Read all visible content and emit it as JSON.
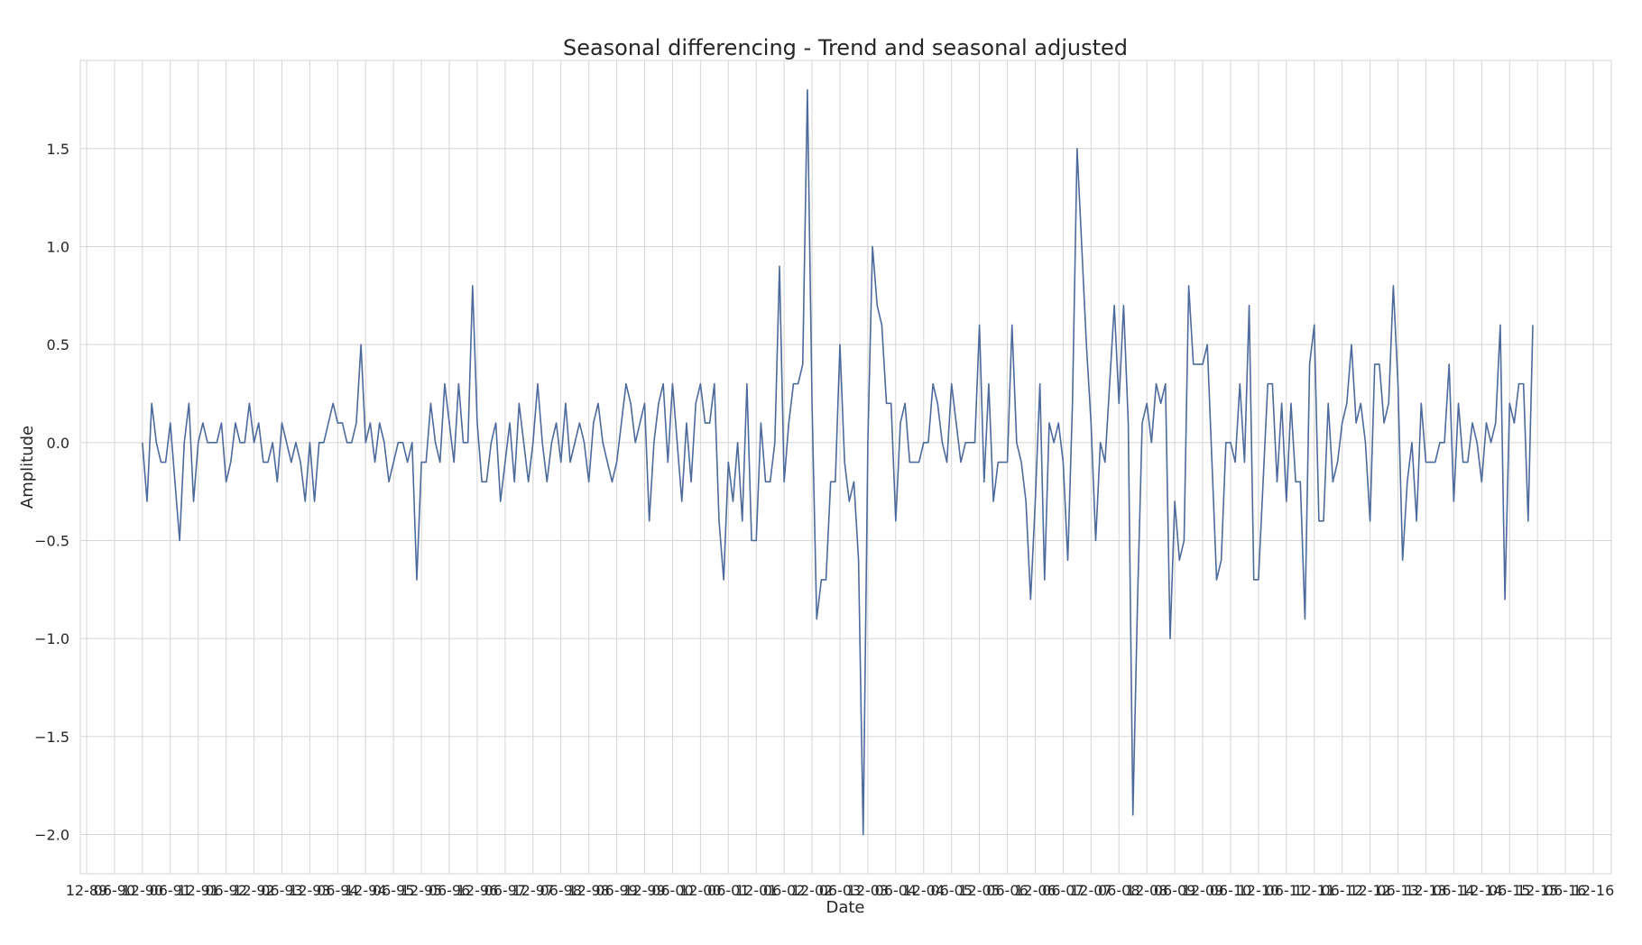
{
  "chart_data": {
    "type": "line",
    "title": "Seasonal differencing - Trend and seasonal adjusted",
    "xlabel": "Date",
    "ylabel": "Amplitude",
    "grid": true,
    "legend": "none",
    "line_color": "#4c6a9c",
    "ylim": [
      -2.2,
      1.95
    ],
    "x_axis_unit": "month index from 1989-12",
    "x_tick_labels": [
      "12-89",
      "06-90",
      "12-90",
      "06-91",
      "12-91",
      "06-92",
      "12-92",
      "06-93",
      "12-93",
      "06-94",
      "12-94",
      "06-95",
      "12-95",
      "06-96",
      "12-96",
      "06-97",
      "12-97",
      "06-98",
      "12-98",
      "06-99",
      "12-99",
      "06-00",
      "12-00",
      "06-01",
      "12-01",
      "06-02",
      "12-02",
      "06-03",
      "12-03",
      "06-04",
      "12-04",
      "06-05",
      "12-05",
      "06-06",
      "12-06",
      "06-07",
      "12-07",
      "06-08",
      "12-08",
      "06-09",
      "12-09",
      "06-10",
      "12-10",
      "06-11",
      "12-11",
      "06-12",
      "12-12",
      "06-13",
      "12-13",
      "06-14",
      "12-14",
      "06-15",
      "12-15",
      "06-16",
      "12-16"
    ],
    "y_ticks": [
      -2.0,
      -1.5,
      -1.0,
      -0.5,
      0.0,
      0.5,
      1.0,
      1.5
    ],
    "y_tick_labels": [
      "−2.0",
      "−1.5",
      "−1.0",
      "−0.5",
      "0.0",
      "0.5",
      "1.0",
      "1.5"
    ],
    "series": [
      {
        "start_month_index": 12,
        "values": [
          0.0,
          -0.3,
          0.2,
          0.0,
          -0.1,
          -0.1,
          0.1,
          -0.2,
          -0.5,
          0.0,
          0.2,
          -0.3,
          0.0,
          0.1,
          0.0,
          0.0,
          0.0,
          0.1,
          -0.2,
          -0.1,
          0.1,
          0.0,
          0.0,
          0.2,
          0.0,
          0.1,
          -0.1,
          -0.1,
          0.0,
          -0.2,
          0.1,
          0.0,
          -0.1,
          0.0,
          -0.1,
          -0.3,
          0.0,
          -0.3,
          0.0,
          0.0,
          0.1,
          0.2,
          0.1,
          0.1,
          0.0,
          0.0,
          0.1,
          0.5,
          0.0,
          0.1,
          -0.1,
          0.1,
          0.0,
          -0.2,
          -0.1,
          0.0,
          0.0,
          -0.1,
          0.0,
          -0.7,
          -0.1,
          -0.1,
          0.2,
          0.0,
          -0.1,
          0.3,
          0.1,
          -0.1,
          0.3,
          0.0,
          0.0,
          0.8,
          0.1,
          -0.2,
          -0.2,
          0.0,
          0.1,
          -0.3,
          -0.1,
          0.1,
          -0.2,
          0.2,
          0.0,
          -0.2,
          0.0,
          0.3,
          0.0,
          -0.2,
          0.0,
          0.1,
          -0.1,
          0.2,
          -0.1,
          0.0,
          0.1,
          0.0,
          -0.2,
          0.1,
          0.2,
          0.0,
          -0.1,
          -0.2,
          -0.1,
          0.1,
          0.3,
          0.2,
          0.0,
          0.1,
          0.2,
          -0.4,
          0.0,
          0.2,
          0.3,
          -0.1,
          0.3,
          0.0,
          -0.3,
          0.1,
          -0.2,
          0.2,
          0.3,
          0.1,
          0.1,
          0.3,
          -0.4,
          -0.7,
          -0.1,
          -0.3,
          0.0,
          -0.4,
          0.3,
          -0.5,
          -0.5,
          0.1,
          -0.2,
          -0.2,
          0.0,
          0.9,
          -0.2,
          0.1,
          0.3,
          0.3,
          0.4,
          1.8,
          0.2,
          -0.9,
          -0.7,
          -0.7,
          -0.2,
          -0.2,
          0.5,
          -0.1,
          -0.3,
          -0.2,
          -0.6,
          -2.0,
          0.0,
          1.0,
          0.7,
          0.6,
          0.2,
          0.2,
          -0.4,
          0.1,
          0.2,
          -0.1,
          -0.1,
          -0.1,
          0.0,
          0.0,
          0.3,
          0.2,
          0.0,
          -0.1,
          0.3,
          0.1,
          -0.1,
          0.0,
          0.0,
          0.0,
          0.6,
          -0.2,
          0.3,
          -0.3,
          -0.1,
          -0.1,
          -0.1,
          0.6,
          0.0,
          -0.1,
          -0.3,
          -0.8,
          -0.3,
          0.3,
          -0.7,
          0.1,
          0.0,
          0.1,
          -0.1,
          -0.6,
          0.2,
          1.5,
          1.0,
          0.5,
          0.1,
          -0.5,
          0.0,
          -0.1,
          0.3,
          0.7,
          0.2,
          0.7,
          0.1,
          -1.9,
          -0.8,
          0.1,
          0.2,
          0.0,
          0.3,
          0.2,
          0.3,
          -1.0,
          -0.3,
          -0.6,
          -0.5,
          0.8,
          0.4,
          0.4,
          0.4,
          0.5,
          -0.1,
          -0.7,
          -0.6,
          0.0,
          0.0,
          -0.1,
          0.3,
          -0.1,
          0.7,
          -0.7,
          -0.7,
          -0.2,
          0.3,
          0.3,
          -0.2,
          0.2,
          -0.3,
          0.2,
          -0.2,
          -0.2,
          -0.9,
          0.4,
          0.6,
          -0.4,
          -0.4,
          0.2,
          -0.2,
          -0.1,
          0.1,
          0.2,
          0.5,
          0.1,
          0.2,
          0.0,
          -0.4,
          0.4,
          0.4,
          0.1,
          0.2,
          0.8,
          0.3,
          -0.6,
          -0.2,
          0.0,
          -0.4,
          0.2,
          -0.1,
          -0.1,
          -0.1,
          0.0,
          0.0,
          0.4,
          -0.3,
          0.2,
          -0.1,
          -0.1,
          0.1,
          0.0,
          -0.2,
          0.1,
          0.0,
          0.1,
          0.6,
          -0.8,
          0.2,
          0.1,
          0.3,
          0.3,
          -0.4,
          0.6
        ]
      }
    ]
  }
}
